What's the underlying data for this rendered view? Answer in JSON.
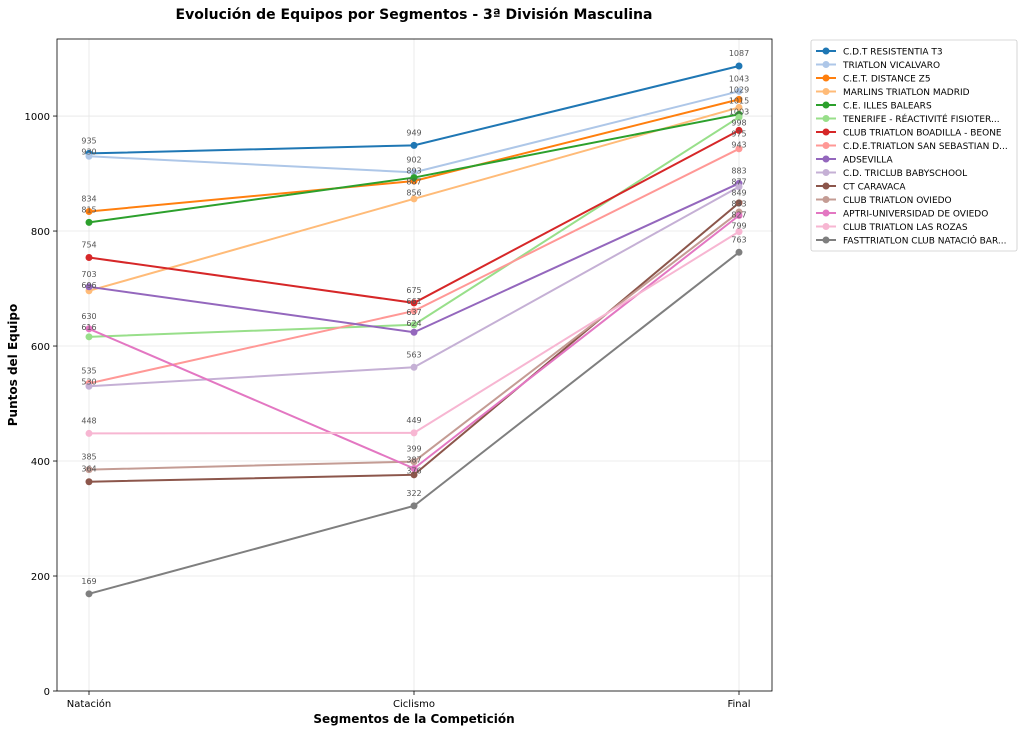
{
  "chart_data": {
    "type": "line",
    "title": "Evolución de Equipos por Segmentos - 3ª División Masculina",
    "xlabel": "Segmentos de la Competición",
    "ylabel": "Puntos del Equipo",
    "categories": [
      "Natación",
      "Ciclismo",
      "Final"
    ],
    "ylim": [
      0,
      1134
    ],
    "yticks": [
      0,
      200,
      400,
      600,
      800,
      1000
    ],
    "grid": true,
    "legend_position": "outside-right",
    "series": [
      {
        "name": "C.D.T RESISTENTIA T3",
        "color": "#1f77b4",
        "values": [
          935,
          949,
          1087
        ]
      },
      {
        "name": "TRIATLON VICALVARO",
        "color": "#aec7e8",
        "values": [
          930,
          902,
          1043
        ]
      },
      {
        "name": "C.E.T. DISTANCE Z5",
        "color": "#ff7f0e",
        "values": [
          834,
          887,
          1029
        ]
      },
      {
        "name": "MARLINS TRIATLON MADRID",
        "color": "#ffbb78",
        "values": [
          696,
          856,
          1015
        ]
      },
      {
        "name": "C.E. ILLES BALEARS",
        "color": "#2ca02c",
        "values": [
          815,
          893,
          1003
        ]
      },
      {
        "name": "TENERIFE - RÉACTIVITÉ FISIOTER...",
        "color": "#98df8a",
        "values": [
          616,
          637,
          998
        ]
      },
      {
        "name": "CLUB TRIATLON BOADILLA - BEONE",
        "color": "#d62728",
        "values": [
          754,
          675,
          975
        ]
      },
      {
        "name": "C.D.E.TRIATLON SAN SEBASTIAN D...",
        "color": "#ff9896",
        "values": [
          535,
          661,
          943
        ]
      },
      {
        "name": "ADSEVILLA",
        "color": "#9467bd",
        "values": [
          703,
          624,
          883
        ]
      },
      {
        "name": "C.D. TRICLUB BABYSCHOOL",
        "color": "#c5b0d5",
        "values": [
          530,
          563,
          877
        ]
      },
      {
        "name": "CT CARAVACA",
        "color": "#8c564b",
        "values": [
          364,
          376,
          849
        ]
      },
      {
        "name": "CLUB TRIATLON OVIEDO",
        "color": "#c49c94",
        "values": [
          385,
          399,
          833
        ]
      },
      {
        "name": "APTRI-UNIVERSIDAD DE OVIEDO",
        "color": "#e377c2",
        "values": [
          630,
          387,
          827
        ]
      },
      {
        "name": "CLUB TRIATLON LAS ROZAS",
        "color": "#f7b6d2",
        "values": [
          448,
          449,
          799
        ]
      },
      {
        "name": "FASTTRIATLON  CLUB NATACIÓ BAR...",
        "color": "#7f7f7f",
        "values": [
          169,
          322,
          763
        ]
      }
    ]
  }
}
